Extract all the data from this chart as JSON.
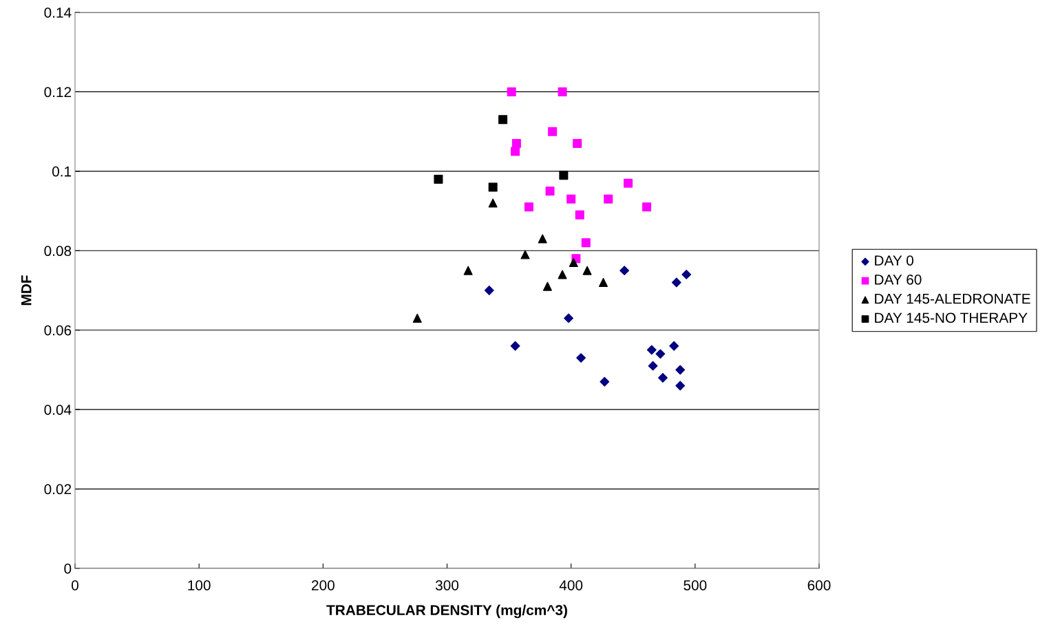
{
  "chart_data": {
    "type": "scatter",
    "xlabel": "TRABECULAR DENSITY (mg/cm^3)",
    "ylabel": "MDF",
    "xlim": [
      0,
      600
    ],
    "xticks": [
      0,
      100,
      200,
      300,
      400,
      500,
      600
    ],
    "ylim": [
      0,
      0.14
    ],
    "yticks": [
      0,
      0.02,
      0.04,
      0.06,
      0.08,
      {
        "value": 0.1,
        "label": "0.1"
      },
      0.12,
      0.14
    ],
    "grid": "y",
    "legend": "right",
    "series": [
      {
        "name": "DAY 0",
        "color": "#000080",
        "marker": "diamond",
        "x": [
          334,
          355,
          398,
          408,
          427,
          443,
          465,
          466,
          472,
          474,
          483,
          485,
          488,
          488,
          493
        ],
        "values": [
          0.07,
          0.056,
          0.063,
          0.053,
          0.047,
          0.075,
          0.055,
          0.051,
          0.054,
          0.048,
          0.056,
          0.072,
          0.05,
          0.046,
          0.074
        ]
      },
      {
        "name": "DAY 60",
        "color": "#ff00ff",
        "marker": "square",
        "x": [
          352,
          393,
          356,
          355,
          385,
          405,
          366,
          383,
          400,
          407,
          412,
          404,
          430,
          446,
          461
        ],
        "values": [
          0.12,
          0.12,
          0.107,
          0.105,
          0.11,
          0.107,
          0.091,
          0.095,
          0.093,
          0.089,
          0.082,
          0.078,
          0.093,
          0.097,
          0.091
        ]
      },
      {
        "name": "DAY 145-ALEDRONATE",
        "color": "#000000",
        "marker": "triangle",
        "x": [
          276,
          317,
          337,
          363,
          377,
          381,
          393,
          402,
          413,
          426
        ],
        "values": [
          0.063,
          0.075,
          0.092,
          0.079,
          0.083,
          0.071,
          0.074,
          0.077,
          0.075,
          0.072
        ]
      },
      {
        "name": "DAY 145-NO THERAPY",
        "color": "#000000",
        "marker": "square",
        "x": [
          293,
          337,
          345,
          394
        ],
        "values": [
          0.098,
          0.096,
          0.113,
          0.099
        ]
      }
    ]
  }
}
